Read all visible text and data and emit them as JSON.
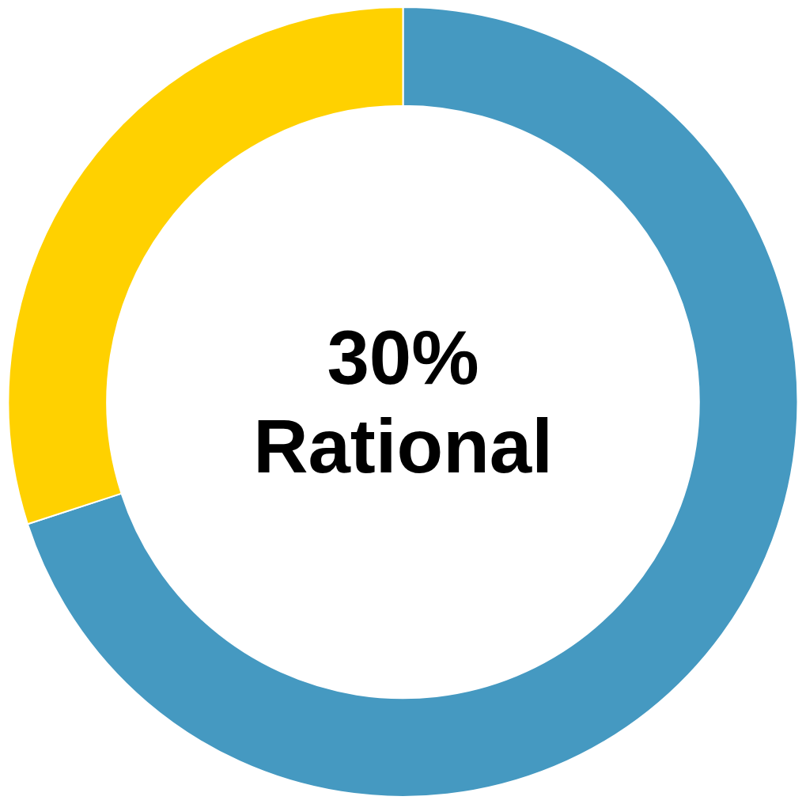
{
  "chart_data": {
    "type": "donut",
    "categories": [
      null,
      null
    ],
    "values": [
      70,
      30
    ],
    "colors": [
      "#4599c1",
      "#ffd100"
    ],
    "annotations": [
      "30%",
      "Rational"
    ],
    "legend": false
  }
}
